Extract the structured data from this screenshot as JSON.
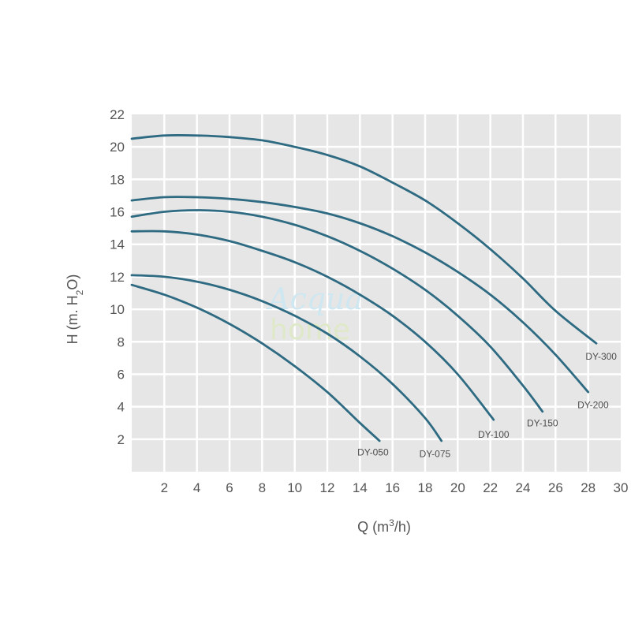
{
  "chart_data": {
    "type": "line",
    "xlabel_main": "Q (m",
    "xlabel_sup": "3",
    "xlabel_end": "/h)",
    "ylabel_main": "H (m. H",
    "ylabel_sub": "2",
    "ylabel_end": "O)",
    "xlim": [
      0,
      30
    ],
    "ylim": [
      0,
      22
    ],
    "x_ticks": [
      "2",
      "4",
      "6",
      "8",
      "10",
      "12",
      "14",
      "16",
      "18",
      "20",
      "22",
      "24",
      "26",
      "28",
      "30"
    ],
    "y_ticks": [
      "2",
      "4",
      "6",
      "8",
      "10",
      "12",
      "14",
      "16",
      "18",
      "20",
      "22"
    ],
    "grid": true,
    "series": [
      {
        "name": "DY-050",
        "x": [
          0,
          2,
          4,
          6,
          8,
          10,
          12,
          14,
          15.2
        ],
        "y": [
          11.5,
          10.9,
          10.1,
          9.1,
          7.9,
          6.5,
          4.9,
          3.0,
          1.9
        ]
      },
      {
        "name": "DY-075",
        "x": [
          0,
          2,
          4,
          6,
          8,
          10,
          12,
          14,
          16,
          18,
          19
        ],
        "y": [
          12.1,
          12.0,
          11.7,
          11.2,
          10.5,
          9.6,
          8.5,
          7.1,
          5.4,
          3.3,
          1.9
        ]
      },
      {
        "name": "DY-100",
        "x": [
          0,
          2,
          4,
          6,
          8,
          10,
          12,
          14,
          16,
          18,
          20,
          22.2
        ],
        "y": [
          14.8,
          14.8,
          14.6,
          14.2,
          13.6,
          12.9,
          12.0,
          10.9,
          9.6,
          8.0,
          6.0,
          3.2
        ]
      },
      {
        "name": "DY-150",
        "x": [
          0,
          2,
          4,
          6,
          8,
          10,
          12,
          14,
          16,
          18,
          20,
          22,
          24,
          25.2
        ],
        "y": [
          15.7,
          16.0,
          16.1,
          16.0,
          15.7,
          15.2,
          14.5,
          13.6,
          12.5,
          11.2,
          9.6,
          7.7,
          5.3,
          3.7
        ]
      },
      {
        "name": "DY-200",
        "x": [
          0,
          2,
          4,
          6,
          8,
          10,
          12,
          14,
          16,
          18,
          20,
          22,
          24,
          26,
          28
        ],
        "y": [
          16.7,
          16.9,
          16.9,
          16.8,
          16.6,
          16.3,
          15.9,
          15.3,
          14.5,
          13.5,
          12.3,
          10.9,
          9.2,
          7.2,
          4.9
        ]
      },
      {
        "name": "DY-300",
        "x": [
          0,
          2,
          4,
          6,
          8,
          10,
          12,
          14,
          16,
          18,
          20,
          22,
          24,
          26,
          28.5
        ],
        "y": [
          20.5,
          20.7,
          20.7,
          20.6,
          20.4,
          20.0,
          19.5,
          18.8,
          17.8,
          16.7,
          15.3,
          13.7,
          11.9,
          9.9,
          7.9
        ]
      }
    ],
    "label_positions": {
      "DY-050": [
        14.8,
        1.0
      ],
      "DY-075": [
        18.6,
        0.9
      ],
      "DY-100": [
        22.2,
        2.1
      ],
      "DY-150": [
        25.2,
        2.8
      ],
      "DY-200": [
        28.3,
        3.9
      ],
      "DY-300": [
        28.8,
        6.9
      ]
    },
    "colors": {
      "line": "#2e6b82",
      "plot_bg": "#e6e6e6",
      "grid": "#ffffff"
    }
  },
  "watermark": {
    "line1": "Acqua",
    "line2": "home"
  }
}
